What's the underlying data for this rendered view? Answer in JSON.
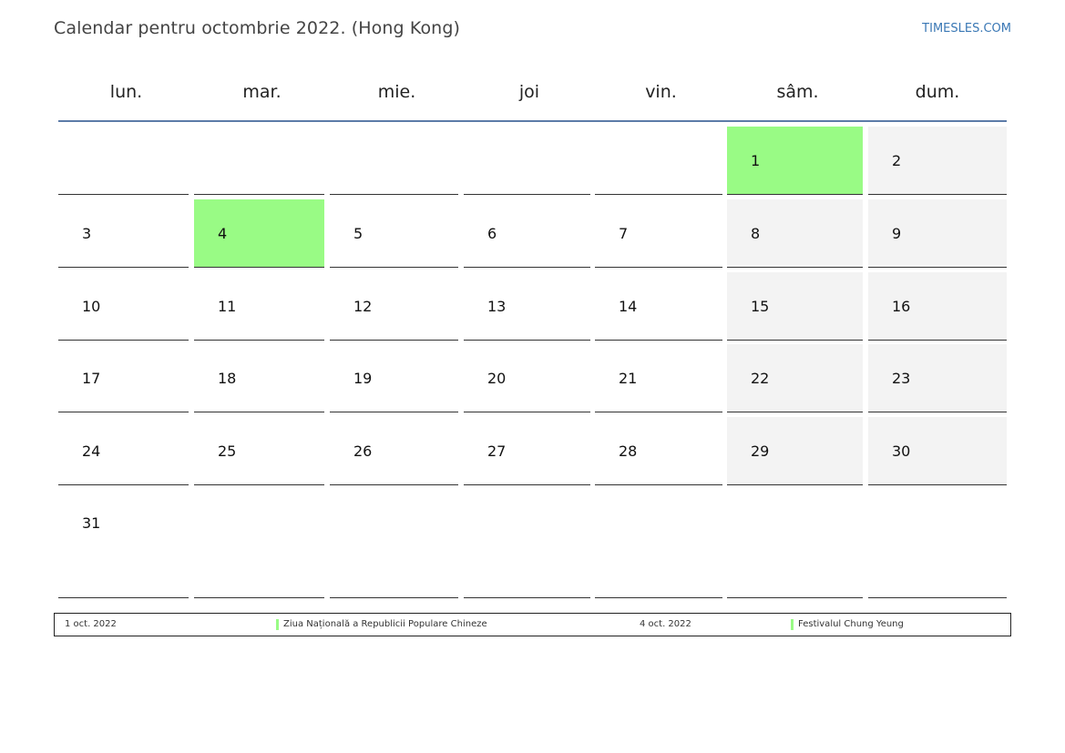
{
  "header": {
    "title": "Calendar pentru octombrie 2022. (Hong Kong)",
    "site": "TIMESLES.COM"
  },
  "calendar": {
    "weekdays": [
      "lun.",
      "mar.",
      "mie.",
      "joi",
      "vin.",
      "sâm.",
      "dum."
    ],
    "weeks": [
      [
        null,
        null,
        null,
        null,
        null,
        {
          "day": "1",
          "type": "holiday"
        },
        {
          "day": "2",
          "type": "weekend"
        }
      ],
      [
        {
          "day": "3"
        },
        {
          "day": "4",
          "type": "holiday"
        },
        {
          "day": "5"
        },
        {
          "day": "6"
        },
        {
          "day": "7"
        },
        {
          "day": "8",
          "type": "weekend"
        },
        {
          "day": "9",
          "type": "weekend"
        }
      ],
      [
        {
          "day": "10"
        },
        {
          "day": "11"
        },
        {
          "day": "12"
        },
        {
          "day": "13"
        },
        {
          "day": "14"
        },
        {
          "day": "15",
          "type": "weekend"
        },
        {
          "day": "16",
          "type": "weekend"
        }
      ],
      [
        {
          "day": "17"
        },
        {
          "day": "18"
        },
        {
          "day": "19"
        },
        {
          "day": "20"
        },
        {
          "day": "21"
        },
        {
          "day": "22",
          "type": "weekend"
        },
        {
          "day": "23",
          "type": "weekend"
        }
      ],
      [
        {
          "day": "24"
        },
        {
          "day": "25"
        },
        {
          "day": "26"
        },
        {
          "day": "27"
        },
        {
          "day": "28"
        },
        {
          "day": "29",
          "type": "weekend"
        },
        {
          "day": "30",
          "type": "weekend"
        }
      ],
      [
        {
          "day": "31"
        },
        null,
        null,
        null,
        null,
        null,
        null
      ]
    ]
  },
  "legend": {
    "entries": [
      {
        "date": "1 oct. 2022",
        "name": "Ziua Națională a Republicii Populare Chineze"
      },
      {
        "date": "4 oct. 2022",
        "name": "Festivalul Chung Yeung"
      }
    ]
  },
  "colors": {
    "holiday": "#99fb85",
    "weekend": "#f3f3f3",
    "header_rule": "#5c7ba8",
    "link": "#3a78b5"
  }
}
